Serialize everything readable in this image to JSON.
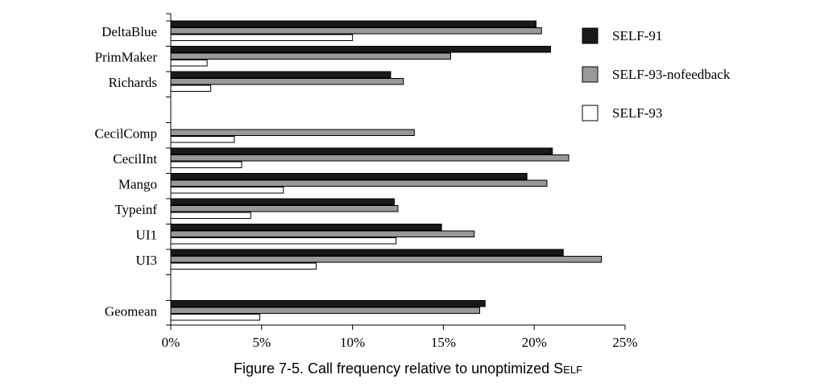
{
  "chart_data": {
    "type": "bar",
    "orientation": "horizontal",
    "groups": [
      {
        "categories": [
          "DeltaBlue",
          "PrimMaker",
          "Richards"
        ]
      },
      {
        "categories": [
          "CecilComp",
          "CecilInt",
          "Mango",
          "Typeinf",
          "UI1",
          "UI3"
        ]
      },
      {
        "categories": [
          "Geomean"
        ]
      }
    ],
    "categories": [
      "DeltaBlue",
      "PrimMaker",
      "Richards",
      "CecilComp",
      "CecilInt",
      "Mango",
      "Typeinf",
      "UI1",
      "UI3",
      "Geomean"
    ],
    "series": [
      {
        "name": "SELF-91",
        "color": "#1a1a1a",
        "values": [
          20.1,
          20.9,
          12.1,
          null,
          21.0,
          19.6,
          12.3,
          14.9,
          21.6,
          17.3
        ]
      },
      {
        "name": "SELF-93-nofeedback",
        "color": "#999999",
        "values": [
          20.4,
          15.4,
          12.8,
          13.4,
          21.9,
          20.7,
          12.5,
          16.7,
          23.7,
          17.0
        ]
      },
      {
        "name": "SELF-93",
        "color": "#ffffff",
        "values": [
          10.0,
          2.0,
          2.2,
          3.5,
          3.9,
          6.2,
          4.4,
          12.4,
          8.0,
          4.9
        ]
      }
    ],
    "xlim": [
      0,
      25
    ],
    "x_ticks": [
      0,
      5,
      10,
      15,
      20,
      25
    ],
    "x_tick_format": "%",
    "legend_position": "right",
    "grid": false
  },
  "caption": {
    "prefix": "Figure 7-5.  Call frequency relative to unoptimized S",
    "small_caps": "elf"
  }
}
